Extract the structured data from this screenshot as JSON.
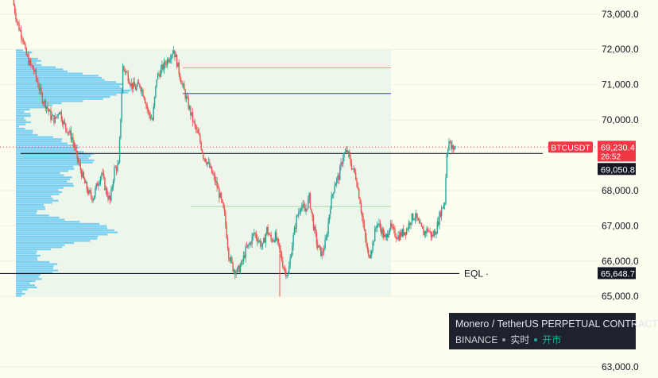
{
  "chart_data": {
    "type": "candlestick",
    "symbol_badge": "BTCUSDT",
    "y_axis": {
      "ticks": [
        "73,000.0",
        "72,000.0",
        "71,000.0",
        "70,000.0",
        "68,000.0",
        "67,000.0",
        "66,000.0",
        "65,000.0",
        "63,000.0"
      ],
      "tick_values": [
        73000,
        72000,
        71000,
        70000,
        68000,
        67000,
        66000,
        65000,
        63000
      ],
      "range": [
        62800,
        73400
      ]
    },
    "price_labels": {
      "last_price": "69,230.4",
      "countdown": "26:52",
      "reference_price": "69,050.8",
      "eql_price": "65,648.7"
    },
    "levels": {
      "last_price": 69230,
      "reference": 69050,
      "eql": 65648,
      "upper_red": 71480,
      "blue": 70750,
      "green": 67550
    },
    "annotations": {
      "eql_label": "EQL"
    },
    "volume_profile": {
      "price_step": 60,
      "top_price": 72000,
      "bottom_price": 65000
    },
    "candles_close_path": [
      [
        0,
        73400
      ],
      [
        2,
        72800
      ],
      [
        3,
        72600
      ],
      [
        5,
        72300
      ],
      [
        6,
        71900
      ],
      [
        8,
        71600
      ],
      [
        10,
        71400
      ],
      [
        12,
        71000
      ],
      [
        14,
        70600
      ],
      [
        16,
        70400
      ],
      [
        18,
        70100
      ],
      [
        20,
        70000
      ],
      [
        22,
        70300
      ],
      [
        24,
        69900
      ],
      [
        26,
        69700
      ],
      [
        28,
        69500
      ],
      [
        30,
        69000
      ],
      [
        32,
        68600
      ],
      [
        34,
        68200
      ],
      [
        36,
        67900
      ],
      [
        38,
        67800
      ],
      [
        40,
        68200
      ],
      [
        42,
        68500
      ],
      [
        44,
        68000
      ],
      [
        46,
        67700
      ],
      [
        48,
        68600
      ],
      [
        50,
        68700
      ],
      [
        52,
        71500
      ],
      [
        54,
        71300
      ],
      [
        56,
        71000
      ],
      [
        58,
        70900
      ],
      [
        60,
        71000
      ],
      [
        62,
        70700
      ],
      [
        64,
        70200
      ],
      [
        66,
        70000
      ],
      [
        68,
        71200
      ],
      [
        70,
        71400
      ],
      [
        72,
        71600
      ],
      [
        74,
        71800
      ],
      [
        76,
        72000
      ],
      [
        78,
        71500
      ],
      [
        80,
        71000
      ],
      [
        82,
        70600
      ],
      [
        84,
        70200
      ],
      [
        86,
        69800
      ],
      [
        88,
        69500
      ],
      [
        90,
        69000
      ],
      [
        92,
        68800
      ],
      [
        94,
        68500
      ],
      [
        96,
        68200
      ],
      [
        98,
        67800
      ],
      [
        100,
        67300
      ],
      [
        102,
        66200
      ],
      [
        104,
        65800
      ],
      [
        106,
        65700
      ],
      [
        108,
        65900
      ],
      [
        110,
        66300
      ],
      [
        112,
        66500
      ],
      [
        114,
        66800
      ],
      [
        116,
        66600
      ],
      [
        118,
        66400
      ],
      [
        120,
        66900
      ],
      [
        122,
        66600
      ],
      [
        124,
        66700
      ],
      [
        126,
        66300
      ],
      [
        128,
        65800
      ],
      [
        130,
        65600
      ],
      [
        132,
        66500
      ],
      [
        134,
        67200
      ],
      [
        136,
        67600
      ],
      [
        138,
        67400
      ],
      [
        140,
        67800
      ],
      [
        142,
        67000
      ],
      [
        144,
        66400
      ],
      [
        146,
        66200
      ],
      [
        148,
        66600
      ],
      [
        150,
        67600
      ],
      [
        152,
        68200
      ],
      [
        154,
        68400
      ],
      [
        156,
        69000
      ],
      [
        158,
        69100
      ],
      [
        160,
        68700
      ],
      [
        162,
        68400
      ],
      [
        164,
        67700
      ],
      [
        166,
        66800
      ],
      [
        168,
        66100
      ],
      [
        170,
        66500
      ],
      [
        172,
        67100
      ],
      [
        174,
        66900
      ],
      [
        176,
        66600
      ],
      [
        178,
        67000
      ],
      [
        180,
        66800
      ],
      [
        182,
        66700
      ],
      [
        184,
        66800
      ],
      [
        186,
        66900
      ],
      [
        188,
        67200
      ],
      [
        190,
        67300
      ],
      [
        192,
        67000
      ],
      [
        194,
        66800
      ],
      [
        196,
        66900
      ],
      [
        198,
        66700
      ],
      [
        200,
        66900
      ],
      [
        202,
        67400
      ],
      [
        204,
        67700
      ],
      [
        205,
        69100
      ],
      [
        206,
        69400
      ],
      [
        207,
        69200
      ],
      [
        208,
        69200
      ],
      [
        209,
        69230
      ]
    ],
    "x_range": [
      0,
      209
    ]
  },
  "tooltip": {
    "title": "Monero / TetherUS PERPETUAL CONTRACT",
    "exchange": "BINANCE",
    "mode": "实时",
    "status": "开市"
  },
  "colors": {
    "background": "#fdfdf0",
    "profile": "#4fc3f7",
    "profile_box": "#e9f5e9",
    "up": "#26a69a",
    "down": "#ef5350",
    "badge_red": "#f23645",
    "badge_black": "#131722",
    "blue_line": "#5b5ff0",
    "red_line": "#f28b82",
    "green_line": "#a5d6a7"
  }
}
